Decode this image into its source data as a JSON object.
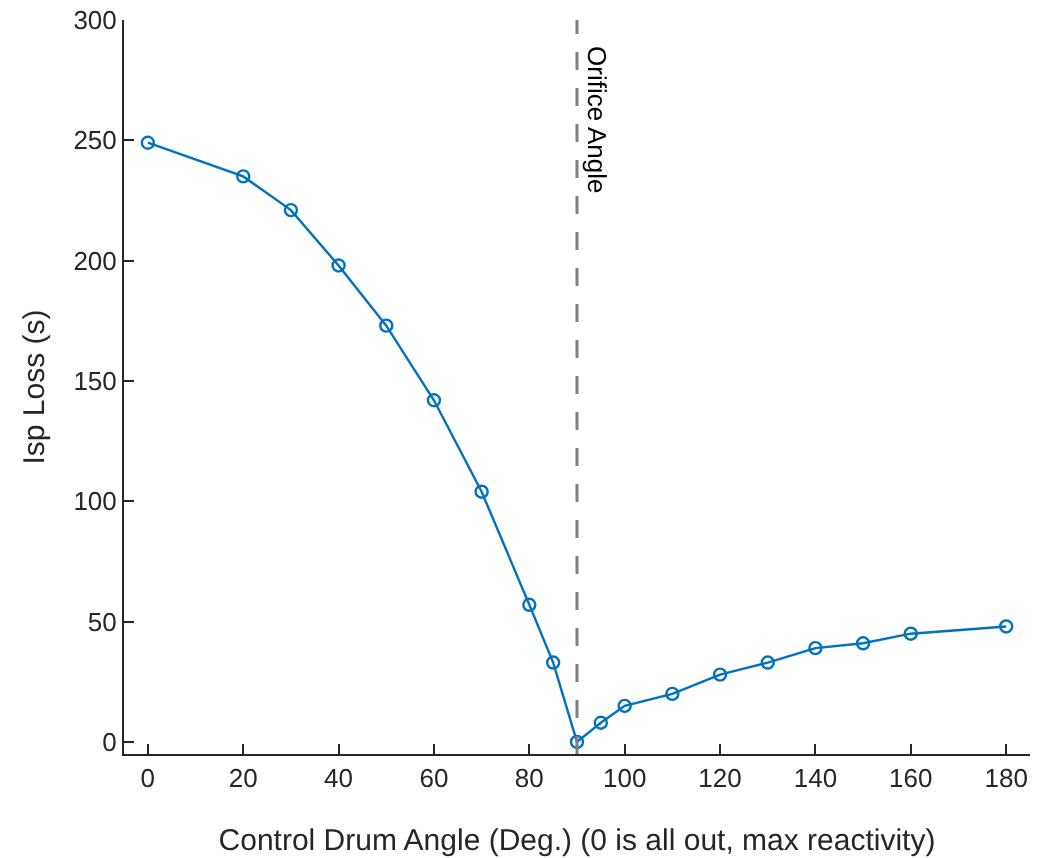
{
  "chart_data": {
    "type": "line",
    "xlabel": "Control Drum Angle (Deg.) (0 is all out, max reactivity)",
    "ylabel": "Isp Loss (s)",
    "x": [
      0,
      20,
      30,
      40,
      50,
      60,
      70,
      80,
      85,
      90,
      95,
      100,
      110,
      120,
      130,
      140,
      150,
      160,
      180
    ],
    "series": [
      {
        "color": "#0072bd",
        "values": [
          249,
          235,
          221,
          198,
          173,
          142,
          104,
          57,
          33,
          0,
          8,
          15,
          20,
          28,
          33,
          39,
          41,
          45,
          48
        ]
      }
    ],
    "xlim": [
      -5,
      185
    ],
    "xticks": [
      0,
      20,
      40,
      60,
      80,
      100,
      120,
      140,
      160,
      180
    ],
    "ylim": [
      -5,
      300
    ],
    "yticks": [
      0,
      50,
      100,
      150,
      200,
      250,
      300
    ],
    "ref_lines": [
      {
        "axis": "x",
        "value": 90,
        "label": "Orifice Angle",
        "color": "#808080",
        "line_style": "dashed"
      }
    ],
    "grid": false,
    "marker": "circle",
    "line_style": "solid"
  }
}
